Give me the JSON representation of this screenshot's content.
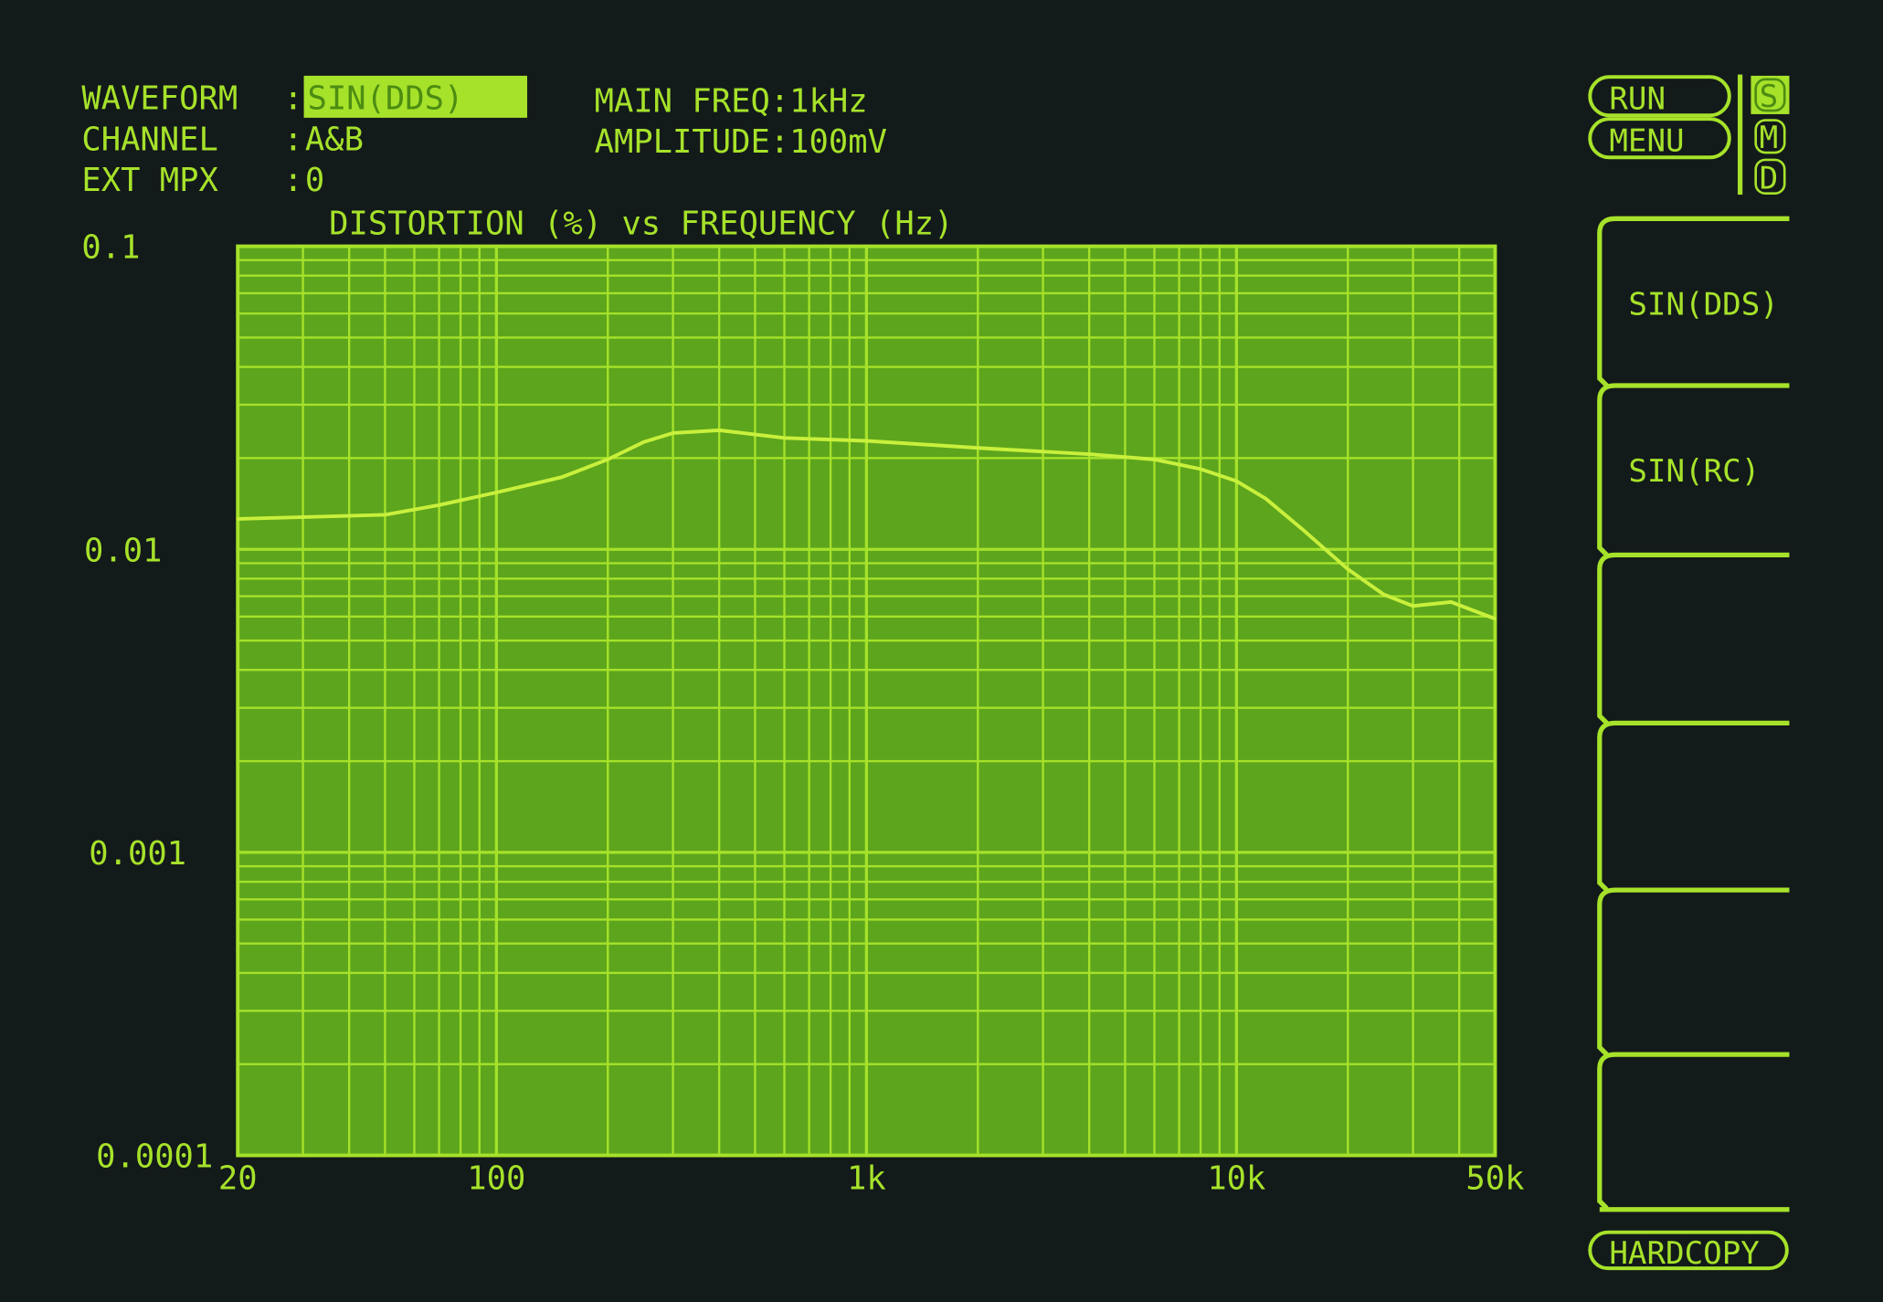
{
  "header": {
    "waveform_label": "WAVEFORM",
    "waveform_value": "SIN(DDS)",
    "channel_label": "CHANNEL",
    "channel_value": "A&B",
    "ext_mpx_label": "EXT MPX",
    "ext_mpx_value": "0",
    "separator": ":",
    "main_freq": "MAIN FREQ:1kHz",
    "amplitude": "AMPLITUDE:100mV"
  },
  "controls": {
    "run": "RUN",
    "menu": "MENU",
    "mode_indicators": [
      "S",
      "M",
      "D"
    ],
    "active_mode": "S",
    "softkeys": [
      "SIN(DDS)",
      "SIN(RC)",
      "",
      "",
      "",
      ""
    ],
    "hardcopy": "HARDCOPY"
  },
  "colors": {
    "phosphor": "#a6e22a",
    "plot_background": "#5da51c",
    "screen_background": "#131a1a"
  },
  "chart_data": {
    "type": "line",
    "title": "DISTORTION (%) vs FREQUENCY (Hz)",
    "xlabel": "",
    "ylabel": "",
    "xscale": "log",
    "yscale": "log",
    "xlim": [
      20,
      50000
    ],
    "ylim": [
      0.0001,
      0.1
    ],
    "grid": true,
    "x_tick_labels": [
      "20",
      "100",
      "1k",
      "10k",
      "50k"
    ],
    "x_ticks": [
      20,
      100,
      1000,
      10000,
      50000
    ],
    "y_tick_labels": [
      "0.1",
      "0.01",
      "0.001",
      "0.0001"
    ],
    "y_ticks": [
      0.1,
      0.01,
      0.001,
      0.0001
    ],
    "series": [
      {
        "x": [
          20,
          50,
          70,
          100,
          150,
          200,
          250,
          300,
          400,
          600,
          1000,
          2000,
          4000,
          6000,
          8000,
          10000,
          12000,
          15000,
          20000,
          25000,
          30000,
          38000,
          50000
        ],
        "y": [
          0.0126,
          0.013,
          0.014,
          0.0154,
          0.0173,
          0.0198,
          0.0226,
          0.0242,
          0.0247,
          0.0233,
          0.0228,
          0.0216,
          0.0206,
          0.0198,
          0.0184,
          0.0168,
          0.0147,
          0.0117,
          0.0086,
          0.0071,
          0.0065,
          0.0067,
          0.0059
        ]
      }
    ]
  }
}
